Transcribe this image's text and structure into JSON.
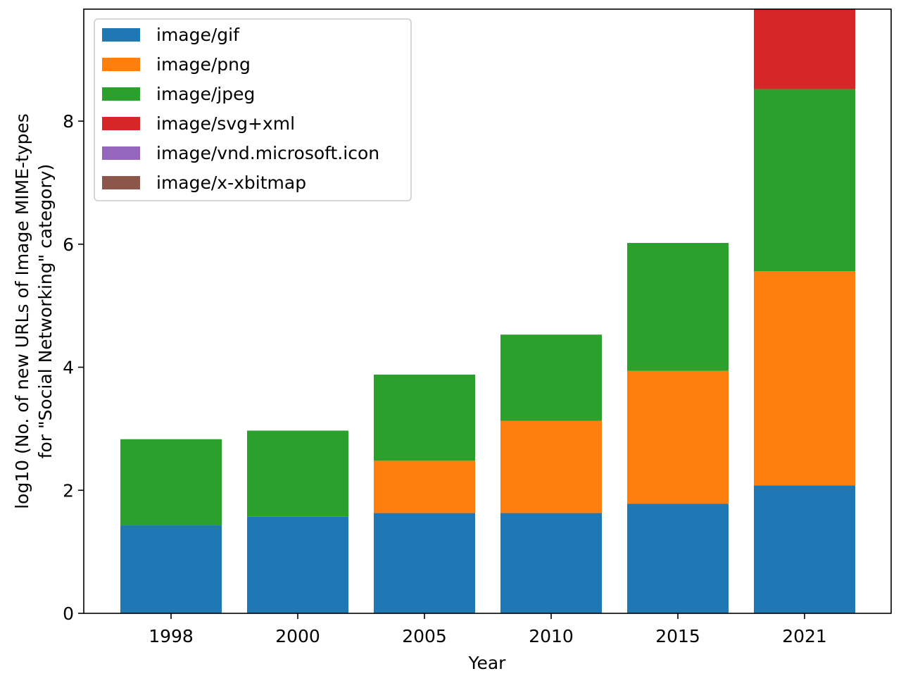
{
  "chart_data": {
    "type": "bar",
    "stacked": true,
    "categories": [
      "1998",
      "2000",
      "2005",
      "2010",
      "2015",
      "2021"
    ],
    "series": [
      {
        "name": "image/gif",
        "color": "#1f77b4",
        "values": [
          1.43,
          1.57,
          1.63,
          1.63,
          1.78,
          2.08
        ]
      },
      {
        "name": "image/png",
        "color": "#ff7f0e",
        "values": [
          0,
          0,
          0.85,
          1.5,
          2.16,
          3.48
        ]
      },
      {
        "name": "image/jpeg",
        "color": "#2ca02c",
        "values": [
          1.4,
          1.4,
          1.4,
          1.4,
          2.08,
          2.96
        ]
      },
      {
        "name": "image/svg+xml",
        "color": "#d62728",
        "values": [
          0,
          0,
          0,
          0,
          0,
          1.3
        ]
      },
      {
        "name": "image/vnd.microsoft.icon",
        "color": "#9467bd",
        "values": [
          0,
          0,
          0,
          0,
          0,
          0
        ]
      },
      {
        "name": "image/x-xbitmap",
        "color": "#8c564b",
        "values": [
          0,
          0,
          0,
          0,
          0,
          0
        ]
      }
    ],
    "title": "",
    "xlabel": "Year",
    "ylabel_line1": "log10 (No. of new URLs of Image MIME-types",
    "ylabel_line2": "for \"Social Networking\" category)",
    "ylim": [
      0,
      9.82
    ],
    "yticks": [
      0,
      2,
      4,
      6,
      8
    ],
    "grid": false,
    "legend_position": "top-left"
  }
}
